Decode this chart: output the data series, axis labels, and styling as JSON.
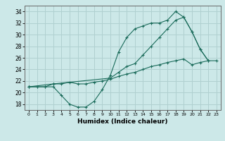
{
  "xlabel": "Humidex (Indice chaleur)",
  "xlim": [
    -0.5,
    23.5
  ],
  "ylim": [
    17,
    35
  ],
  "yticks": [
    18,
    20,
    22,
    24,
    26,
    28,
    30,
    32,
    34
  ],
  "xticks": [
    0,
    1,
    2,
    3,
    4,
    5,
    6,
    7,
    8,
    9,
    10,
    11,
    12,
    13,
    14,
    15,
    16,
    17,
    18,
    19,
    20,
    21,
    22,
    23
  ],
  "bg_color": "#cce8e8",
  "grid_color": "#b0d0d0",
  "line_color": "#1a6b5a",
  "line1_x": [
    0,
    1,
    2,
    3,
    4,
    5,
    6,
    7,
    8,
    9,
    10,
    11,
    12,
    13,
    14,
    15,
    16,
    17,
    18,
    19,
    20,
    21,
    22,
    23
  ],
  "line1_y": [
    21.0,
    21.0,
    21.0,
    21.5,
    21.5,
    21.8,
    21.5,
    21.5,
    21.8,
    22.0,
    22.3,
    22.8,
    23.2,
    23.5,
    24.0,
    24.5,
    24.8,
    25.2,
    25.5,
    25.8,
    24.8,
    25.2,
    25.5,
    25.5
  ],
  "line2_x": [
    0,
    1,
    2,
    3,
    4,
    5,
    6,
    7,
    8,
    9,
    10,
    11,
    12,
    13,
    14,
    15,
    16,
    17,
    18,
    19,
    20,
    21,
    22
  ],
  "line2_y": [
    21.0,
    21.0,
    21.0,
    21.0,
    19.5,
    18.0,
    17.5,
    17.5,
    18.5,
    20.5,
    23.0,
    27.0,
    29.5,
    31.0,
    31.5,
    32.0,
    32.0,
    32.5,
    34.0,
    33.0,
    30.5,
    27.5,
    25.5
  ],
  "line3_x": [
    0,
    3,
    10,
    11,
    12,
    13,
    14,
    15,
    16,
    17,
    18,
    19,
    20,
    21,
    22
  ],
  "line3_y": [
    21.0,
    21.5,
    22.5,
    23.5,
    24.5,
    25.0,
    26.5,
    28.0,
    29.5,
    31.0,
    32.5,
    33.0,
    30.5,
    27.5,
    25.5
  ]
}
